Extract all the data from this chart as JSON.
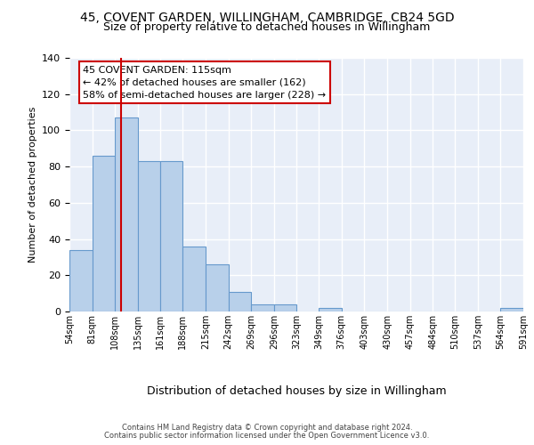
{
  "title1": "45, COVENT GARDEN, WILLINGHAM, CAMBRIDGE, CB24 5GD",
  "title2": "Size of property relative to detached houses in Willingham",
  "xlabel": "Distribution of detached houses by size in Willingham",
  "ylabel": "Number of detached properties",
  "bar_edges": [
    54,
    81,
    108,
    135,
    161,
    188,
    215,
    242,
    269,
    296,
    323,
    349,
    376,
    403,
    430,
    457,
    484,
    510,
    537,
    564,
    591
  ],
  "bar_heights": [
    34,
    86,
    107,
    83,
    83,
    36,
    26,
    11,
    4,
    4,
    0,
    2,
    0,
    0,
    0,
    0,
    0,
    0,
    0,
    2
  ],
  "bar_color": "#b8d0ea",
  "bar_edgecolor": "#6699cc",
  "bar_linewidth": 0.8,
  "vline_x": 115,
  "vline_color": "#cc0000",
  "annotation_text": "45 COVENT GARDEN: 115sqm\n← 42% of detached houses are smaller (162)\n58% of semi-detached houses are larger (228) →",
  "ylim": [
    0,
    140
  ],
  "yticks": [
    0,
    20,
    40,
    60,
    80,
    100,
    120,
    140
  ],
  "tick_labels": [
    "54sqm",
    "81sqm",
    "108sqm",
    "135sqm",
    "161sqm",
    "188sqm",
    "215sqm",
    "242sqm",
    "269sqm",
    "296sqm",
    "323sqm",
    "349sqm",
    "376sqm",
    "403sqm",
    "430sqm",
    "457sqm",
    "484sqm",
    "510sqm",
    "537sqm",
    "564sqm",
    "591sqm"
  ],
  "footer1": "Contains HM Land Registry data © Crown copyright and database right 2024.",
  "footer2": "Contains public sector information licensed under the Open Government Licence v3.0.",
  "bg_color": "#e8eef8",
  "grid_color": "#ffffff",
  "title1_fontsize": 10,
  "title2_fontsize": 9,
  "ylabel_fontsize": 8,
  "xlabel_fontsize": 9,
  "ytick_fontsize": 8,
  "xtick_fontsize": 7,
  "footer_fontsize": 6,
  "annot_fontsize": 8
}
